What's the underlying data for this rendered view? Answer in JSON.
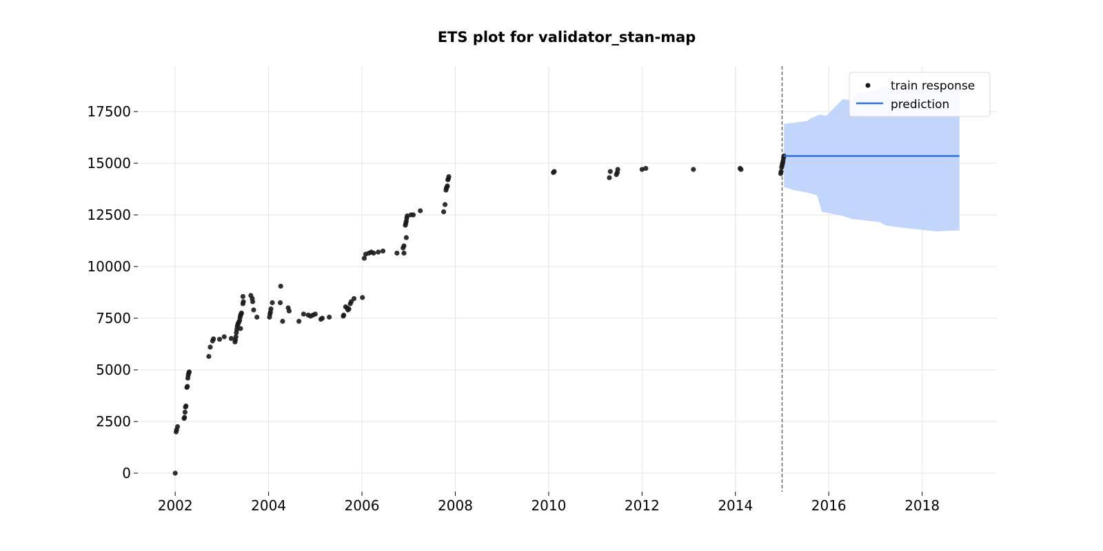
{
  "chart_data": {
    "type": "scatter",
    "title": "ETS plot for validator_stan-map",
    "xlabel": "",
    "ylabel": "",
    "xlim": [
      2001.2,
      2019.6
    ],
    "ylim": [
      -900,
      19700
    ],
    "x_ticks": [
      2002,
      2004,
      2006,
      2008,
      2010,
      2012,
      2014,
      2016,
      2018
    ],
    "x_tick_labels": [
      "2002",
      "2004",
      "2006",
      "2008",
      "2010",
      "2012",
      "2014",
      "2016",
      "2018"
    ],
    "y_ticks": [
      0,
      2500,
      5000,
      7500,
      10000,
      12500,
      15000,
      17500
    ],
    "y_tick_labels": [
      "0",
      "2500",
      "5000",
      "7500",
      "10000",
      "12500",
      "15000",
      "17500"
    ],
    "grid": true,
    "legend": {
      "position": "top-right",
      "entries": [
        {
          "label": "train response",
          "kind": "dot"
        },
        {
          "label": "prediction",
          "kind": "line"
        }
      ]
    },
    "cutoff_x": 2015.0,
    "colors": {
      "points": "#1a1a1a",
      "prediction": "#2a6fdb",
      "band": "#bfd3fa",
      "cutoff": "#666666"
    },
    "series": [
      {
        "name": "train response",
        "points": [
          [
            2002.0,
            0
          ],
          [
            2002.02,
            2000
          ],
          [
            2002.03,
            2100
          ],
          [
            2002.05,
            2250
          ],
          [
            2002.19,
            2650
          ],
          [
            2002.2,
            2700
          ],
          [
            2002.21,
            2950
          ],
          [
            2002.22,
            3200
          ],
          [
            2002.23,
            3250
          ],
          [
            2002.25,
            4150
          ],
          [
            2002.26,
            4200
          ],
          [
            2002.27,
            4600
          ],
          [
            2002.28,
            4750
          ],
          [
            2002.29,
            4850
          ],
          [
            2002.3,
            4900
          ],
          [
            2002.72,
            5650
          ],
          [
            2002.75,
            6100
          ],
          [
            2002.8,
            6400
          ],
          [
            2002.82,
            6500
          ],
          [
            2002.95,
            6480
          ],
          [
            2003.05,
            6600
          ],
          [
            2003.2,
            6520
          ],
          [
            2003.28,
            6350
          ],
          [
            2003.29,
            6450
          ],
          [
            2003.3,
            6600
          ],
          [
            2003.31,
            6800
          ],
          [
            2003.32,
            6950
          ],
          [
            2003.33,
            7100
          ],
          [
            2003.34,
            7200
          ],
          [
            2003.35,
            7250
          ],
          [
            2003.36,
            7300
          ],
          [
            2003.38,
            7400
          ],
          [
            2003.39,
            7550
          ],
          [
            2003.4,
            7650
          ],
          [
            2003.41,
            7700
          ],
          [
            2003.42,
            7750
          ],
          [
            2003.4,
            7000
          ],
          [
            2003.45,
            8200
          ],
          [
            2003.46,
            8300
          ],
          [
            2003.45,
            8550
          ],
          [
            2003.62,
            8600
          ],
          [
            2003.65,
            8450
          ],
          [
            2003.66,
            8300
          ],
          [
            2003.68,
            7900
          ],
          [
            2003.75,
            7550
          ],
          [
            2004.02,
            7550
          ],
          [
            2004.03,
            7700
          ],
          [
            2004.04,
            7800
          ],
          [
            2004.05,
            7950
          ],
          [
            2004.08,
            8250
          ],
          [
            2004.25,
            8250
          ],
          [
            2004.26,
            9050
          ],
          [
            2004.3,
            7350
          ],
          [
            2004.42,
            8000
          ],
          [
            2004.44,
            7850
          ],
          [
            2004.65,
            7350
          ],
          [
            2004.75,
            7700
          ],
          [
            2004.85,
            7650
          ],
          [
            2004.9,
            7600
          ],
          [
            2004.95,
            7650
          ],
          [
            2005.0,
            7700
          ],
          [
            2005.12,
            7450
          ],
          [
            2005.15,
            7500
          ],
          [
            2005.3,
            7550
          ],
          [
            2005.6,
            7600
          ],
          [
            2005.61,
            7650
          ],
          [
            2005.65,
            8050
          ],
          [
            2005.68,
            8000
          ],
          [
            2005.7,
            7900
          ],
          [
            2005.72,
            7950
          ],
          [
            2005.75,
            8200
          ],
          [
            2005.77,
            8300
          ],
          [
            2005.83,
            8450
          ],
          [
            2006.01,
            8500
          ],
          [
            2006.05,
            10400
          ],
          [
            2006.08,
            10600
          ],
          [
            2006.15,
            10650
          ],
          [
            2006.2,
            10700
          ],
          [
            2006.25,
            10650
          ],
          [
            2006.35,
            10700
          ],
          [
            2006.45,
            10750
          ],
          [
            2006.75,
            10650
          ],
          [
            2006.9,
            10650
          ],
          [
            2006.88,
            10900
          ],
          [
            2006.9,
            11000
          ],
          [
            2006.95,
            11400
          ],
          [
            2006.93,
            12000
          ],
          [
            2006.94,
            12100
          ],
          [
            2006.95,
            12200
          ],
          [
            2006.96,
            12350
          ],
          [
            2006.97,
            12450
          ],
          [
            2007.05,
            12500
          ],
          [
            2007.1,
            12500
          ],
          [
            2007.25,
            12700
          ],
          [
            2007.75,
            12650
          ],
          [
            2007.78,
            13000
          ],
          [
            2007.8,
            13700
          ],
          [
            2007.81,
            13800
          ],
          [
            2007.82,
            13850
          ],
          [
            2007.83,
            13900
          ],
          [
            2007.84,
            14200
          ],
          [
            2007.85,
            14250
          ],
          [
            2007.86,
            14350
          ],
          [
            2010.1,
            14550
          ],
          [
            2010.12,
            14600
          ],
          [
            2011.3,
            14300
          ],
          [
            2011.32,
            14600
          ],
          [
            2011.45,
            14450
          ],
          [
            2011.47,
            14550
          ],
          [
            2011.48,
            14700
          ],
          [
            2012.0,
            14700
          ],
          [
            2012.08,
            14750
          ],
          [
            2013.1,
            14700
          ],
          [
            2014.1,
            14750
          ],
          [
            2014.12,
            14700
          ],
          [
            2014.97,
            14500
          ],
          [
            2014.98,
            14600
          ],
          [
            2014.99,
            14800
          ],
          [
            2015.0,
            14900
          ],
          [
            2015.01,
            15000
          ],
          [
            2015.02,
            15100
          ],
          [
            2015.03,
            15250
          ],
          [
            2015.04,
            15350
          ]
        ]
      },
      {
        "name": "prediction",
        "x": [
          2015.04,
          2018.8
        ],
        "y": [
          15350,
          15350
        ]
      }
    ],
    "band": {
      "upper": [
        [
          2015.04,
          16900
        ],
        [
          2015.55,
          17050
        ],
        [
          2015.6,
          17150
        ],
        [
          2015.8,
          17350
        ],
        [
          2015.95,
          17300
        ],
        [
          2016.3,
          18100
        ],
        [
          2016.5,
          18050
        ],
        [
          2016.6,
          18400
        ],
        [
          2017.0,
          18500
        ],
        [
          2017.2,
          18700
        ],
        [
          2017.5,
          18600
        ],
        [
          2018.8,
          18700
        ]
      ],
      "lower": [
        [
          2015.04,
          13850
        ],
        [
          2015.25,
          13700
        ],
        [
          2015.5,
          13600
        ],
        [
          2015.75,
          13450
        ],
        [
          2015.85,
          12650
        ],
        [
          2016.3,
          12450
        ],
        [
          2016.5,
          12300
        ],
        [
          2017.1,
          12150
        ],
        [
          2017.2,
          12000
        ],
        [
          2017.5,
          11900
        ],
        [
          2018.3,
          11700
        ],
        [
          2018.8,
          11750
        ]
      ]
    }
  }
}
